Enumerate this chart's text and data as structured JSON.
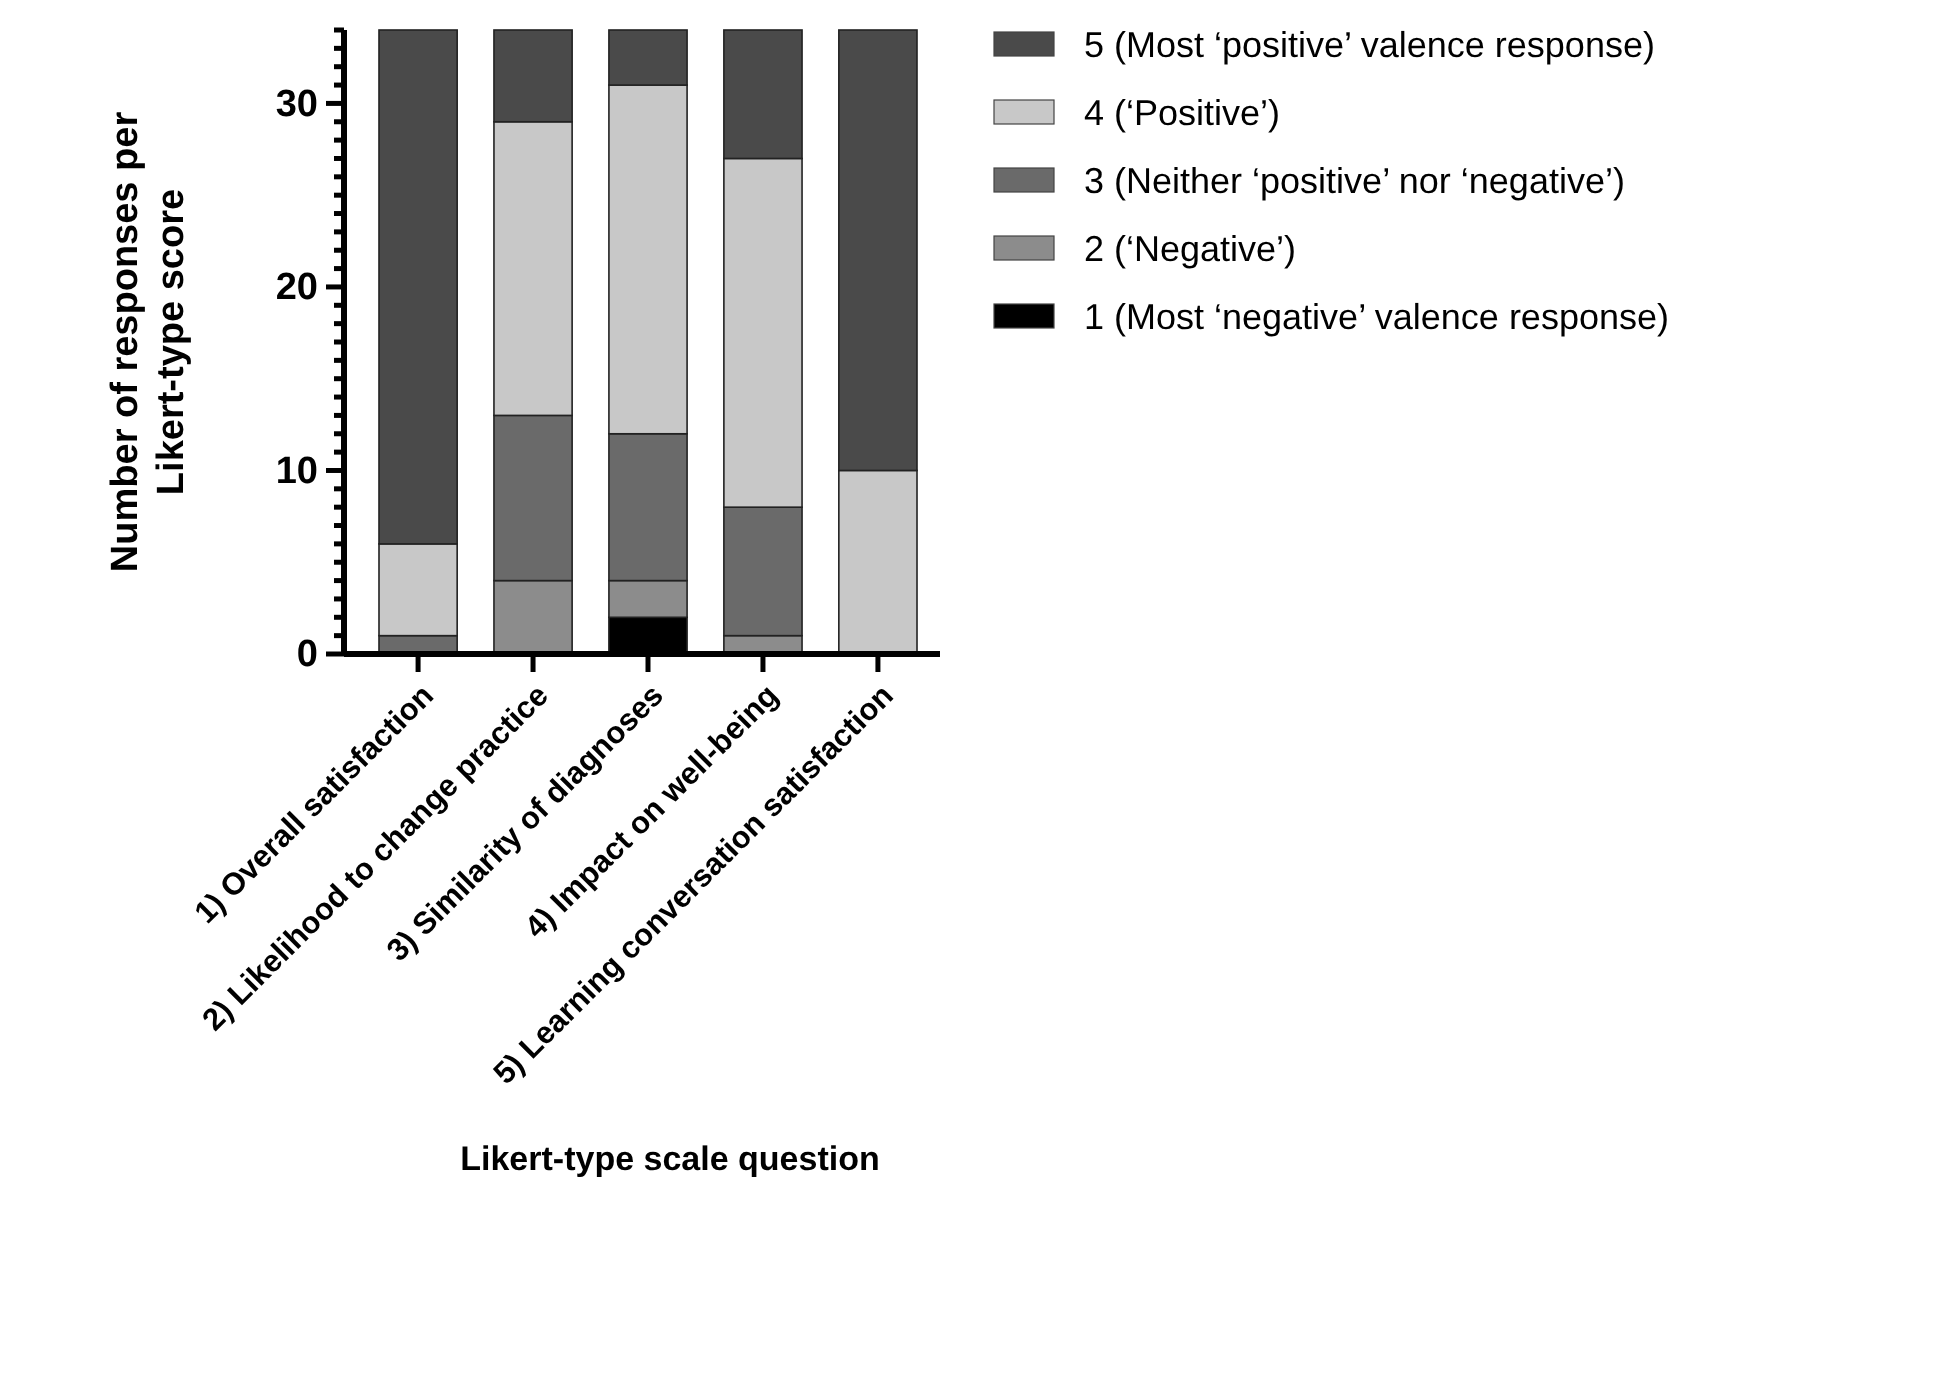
{
  "chart_data": {
    "type": "bar",
    "stacked": true,
    "xlabel": "Likert-type scale question",
    "ylabel": "Number of responses per Likert-type score",
    "categories": [
      "1) Overall satisfaction",
      "2) Likelihood to change practice",
      "3) Similarity of diagnoses",
      "4) Impact on well-being",
      "5) Learning conversation satisfaction"
    ],
    "series": [
      {
        "name": "1 (Most ‘negative’ valence response)",
        "color": "#000000",
        "values": [
          0,
          0,
          2,
          0,
          0
        ]
      },
      {
        "name": "2 (‘Negative’)",
        "color": "#8c8c8c",
        "values": [
          0,
          4,
          2,
          1,
          0
        ]
      },
      {
        "name": "3 (Neither ‘positive’ nor ‘negative’)",
        "color": "#6a6a6a",
        "values": [
          1,
          9,
          8,
          7,
          0
        ]
      },
      {
        "name": "4 (‘Positive’)",
        "color": "#c8c8c8",
        "values": [
          5,
          16,
          19,
          19,
          10
        ]
      },
      {
        "name": "5 (Most ‘positive’ valence response)",
        "color": "#4a4a4a",
        "values": [
          28,
          5,
          3,
          7,
          24
        ]
      }
    ],
    "ylim": [
      0,
      34
    ],
    "yticks": [
      0,
      {
        "value": 1,
        "label": null
      },
      {
        "value": 2,
        "label": null
      },
      {
        "value": 3,
        "label": null
      },
      {
        "value": 4,
        "label": null
      },
      {
        "value": 5,
        "label": null
      },
      {
        "value": 6,
        "label": null
      },
      {
        "value": 7,
        "label": null
      },
      {
        "value": 8,
        "label": null
      },
      {
        "value": 9,
        "label": null
      },
      10,
      {
        "value": 11,
        "label": null
      },
      {
        "value": 12,
        "label": null
      },
      {
        "value": 13,
        "label": null
      },
      {
        "value": 14,
        "label": null
      },
      {
        "value": 15,
        "label": null
      },
      {
        "value": 16,
        "label": null
      },
      {
        "value": 17,
        "label": null
      },
      {
        "value": 18,
        "label": null
      },
      {
        "value": 19,
        "label": null
      },
      20,
      {
        "value": 21,
        "label": null
      },
      {
        "value": 22,
        "label": null
      },
      {
        "value": 23,
        "label": null
      },
      {
        "value": 24,
        "label": null
      },
      {
        "value": 25,
        "label": null
      },
      {
        "value": 26,
        "label": null
      },
      {
        "value": 27,
        "label": null
      },
      {
        "value": 28,
        "label": null
      },
      {
        "value": 29,
        "label": null
      },
      30,
      {
        "value": 31,
        "label": null
      },
      {
        "value": 32,
        "label": null
      },
      {
        "value": 33,
        "label": null
      },
      {
        "value": 34,
        "label": null
      }
    ],
    "grid": false,
    "legend": "right"
  }
}
